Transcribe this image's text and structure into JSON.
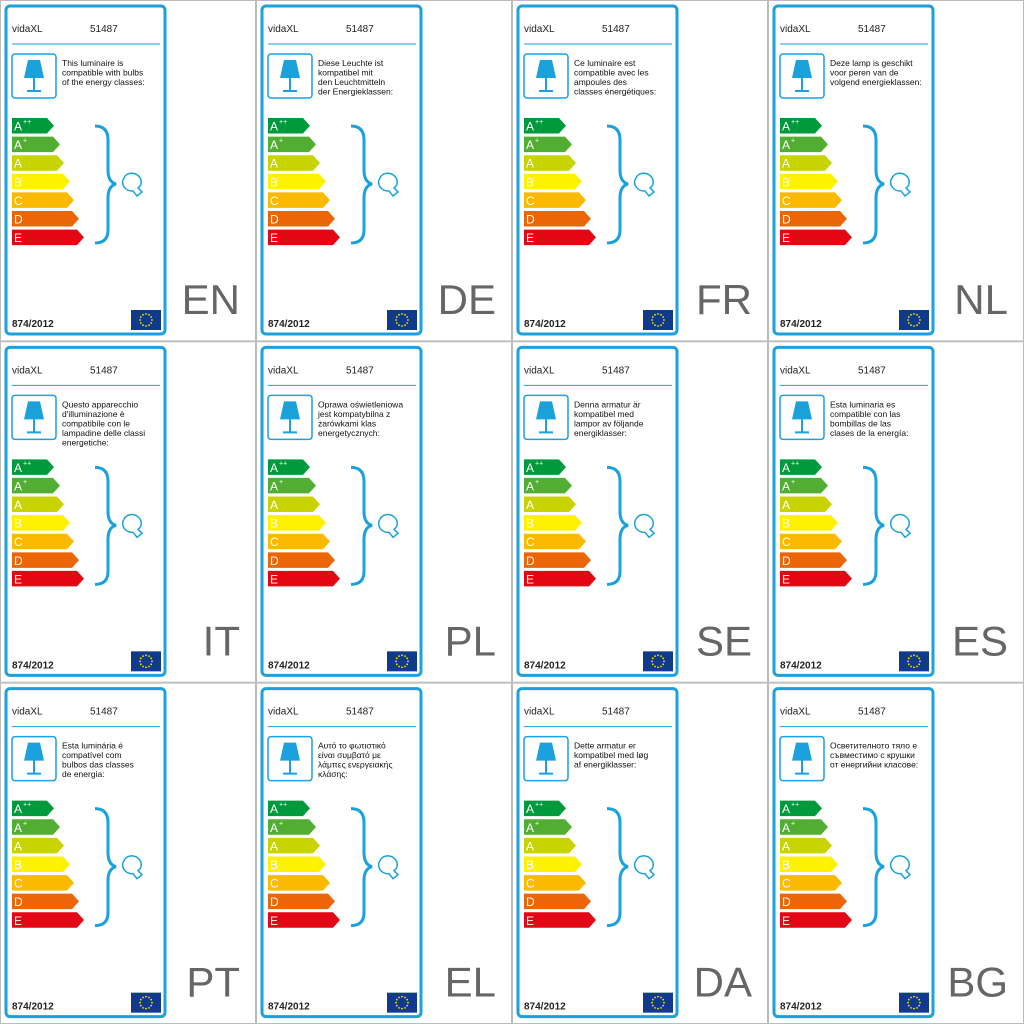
{
  "brand": "vidaXL",
  "model": "51487",
  "regulation": "874/2012",
  "energy_classes": [
    {
      "letter": "A",
      "sup": "++",
      "color": "#009a3d"
    },
    {
      "letter": "A",
      "sup": "+",
      "color": "#52ae32"
    },
    {
      "letter": "A",
      "color": "#c8d400"
    },
    {
      "letter": "B",
      "color": "#fff200"
    },
    {
      "letter": "C",
      "color": "#fbb900"
    },
    {
      "letter": "D",
      "color": "#ec6608"
    },
    {
      "letter": "E",
      "color": "#e30613"
    }
  ],
  "labels": [
    {
      "lang": "EN",
      "description": [
        "This luminaire is",
        "compatible with bulbs",
        "of the energy classes:"
      ]
    },
    {
      "lang": "DE",
      "description": [
        "Diese Leuchte ist",
        "kompatibel mit",
        "den Leuchtmitteln",
        "der Energieklassen:"
      ]
    },
    {
      "lang": "FR",
      "description": [
        "Ce luminaire est",
        "compatible avec les",
        "ampoules des",
        "classes énergétiques:"
      ]
    },
    {
      "lang": "NL",
      "description": [
        "Deze lamp is geschikt",
        "voor peren van de",
        "volgend energieklassen:"
      ]
    },
    {
      "lang": "IT",
      "description": [
        "Questo apparecchio",
        "d'illuminazione è",
        "compatibile con le",
        "lampadine delle classi",
        "energetiche:"
      ]
    },
    {
      "lang": "PL",
      "description": [
        "Oprawa oświetleniowa",
        "jest kompatybilna z",
        "żarówkami klas",
        "energetycznych:"
      ]
    },
    {
      "lang": "SE",
      "description": [
        "Denna armatur är",
        "kompatibel med",
        "lampor av följande",
        "energiklasser:"
      ]
    },
    {
      "lang": "ES",
      "description": [
        "Esta luminaria es",
        "compatible con las",
        "bombillas de las",
        "clases de la energía:"
      ]
    },
    {
      "lang": "PT",
      "description": [
        "Esta luminária é",
        "compatível com",
        "bulbos das classes",
        "de energia:"
      ]
    },
    {
      "lang": "EL",
      "description": [
        "Αυτό το φωτιστικό",
        "είναι συμβατό με",
        "λάμπες ενεργειακής",
        "κλάσης:"
      ]
    },
    {
      "lang": "DA",
      "description": [
        "Dette armatur er",
        "kompatibel med løg",
        "af energiklasser:"
      ]
    },
    {
      "lang": "BG",
      "description": [
        "Осветителното тяло е",
        "съвместимо с крушки",
        "от енергийни класове:"
      ]
    }
  ]
}
